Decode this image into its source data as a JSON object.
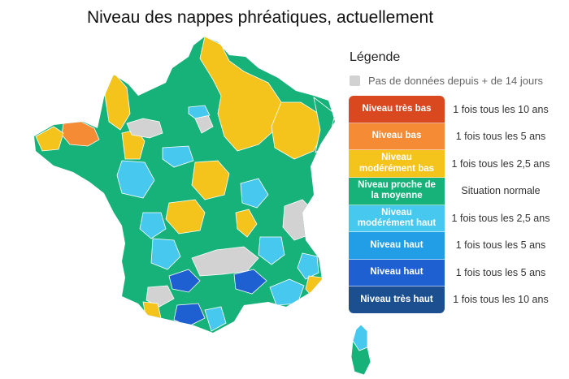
{
  "title": "Niveau des nappes phréatiques, actuellement",
  "legend": {
    "title": "Légende",
    "no_data": {
      "label": "Pas de données depuis + de 14 jours",
      "color": "#d2d2d2"
    },
    "levels": [
      {
        "label": "Niveau très bas",
        "frequency": "1 fois tous les 10 ans",
        "color": "#d9481f"
      },
      {
        "label": "Niveau bas",
        "frequency": "1 fois tous les 5 ans",
        "color": "#f58b34"
      },
      {
        "label": "Niveau modérément bas",
        "frequency": "1 fois tous les 2,5 ans",
        "color": "#f5c41c"
      },
      {
        "label": "Niveau proche de la moyenne",
        "frequency": "Situation normale",
        "color": "#17b27a"
      },
      {
        "label": "Niveau modérément haut",
        "frequency": "1 fois tous les 2,5 ans",
        "color": "#47c8ef"
      },
      {
        "label": "Niveau haut",
        "frequency": "1 fois tous les 5 ans",
        "color": "#229ee6"
      },
      {
        "label": "Niveau haut",
        "frequency": "1 fois tous les 5 ans",
        "color": "#1e5fd1"
      },
      {
        "label": "Niveau très haut",
        "frequency": "1 fois tous les 10 ans",
        "color": "#1b4f8f"
      }
    ]
  },
  "map": {
    "base_color": "#17b27a",
    "border_color": "#ffffff",
    "regions": [
      {
        "name": "nord-pas-de-calais",
        "level": "Niveau modérément bas",
        "color": "#f5c41c"
      },
      {
        "name": "cotentin-manche",
        "level": "Niveau modérément bas",
        "color": "#f5c41c"
      },
      {
        "name": "cotes-d-armor",
        "level": "Niveau bas",
        "color": "#f58b34"
      },
      {
        "name": "champagne-lorraine",
        "level": "Niveau modérément bas",
        "color": "#f5c41c"
      },
      {
        "name": "centre-val-de-loire",
        "level": "Niveau modérément bas",
        "color": "#f5c41c"
      },
      {
        "name": "bourgogne",
        "level": "Niveau modérément bas",
        "color": "#f5c41c"
      },
      {
        "name": "paris",
        "level": "Pas de données",
        "color": "#d2d2d2"
      },
      {
        "name": "alpes",
        "level": "Pas de données",
        "color": "#d2d2d2"
      },
      {
        "name": "massif-central",
        "level": "Pas de données",
        "color": "#d2d2d2"
      },
      {
        "name": "pays-de-la-loire",
        "level": "Niveau modérément haut",
        "color": "#47c8ef"
      },
      {
        "name": "toulouse",
        "level": "Niveau haut",
        "color": "#1e5fd1"
      },
      {
        "name": "herault",
        "level": "Niveau haut",
        "color": "#1e5fd1"
      },
      {
        "name": "pyrenees",
        "level": "Niveau haut",
        "color": "#1e5fd1"
      },
      {
        "name": "var",
        "level": "Niveau modérément bas",
        "color": "#f5c41c"
      },
      {
        "name": "corse",
        "level": "Niveau modérément haut",
        "color": "#47c8ef"
      }
    ]
  }
}
